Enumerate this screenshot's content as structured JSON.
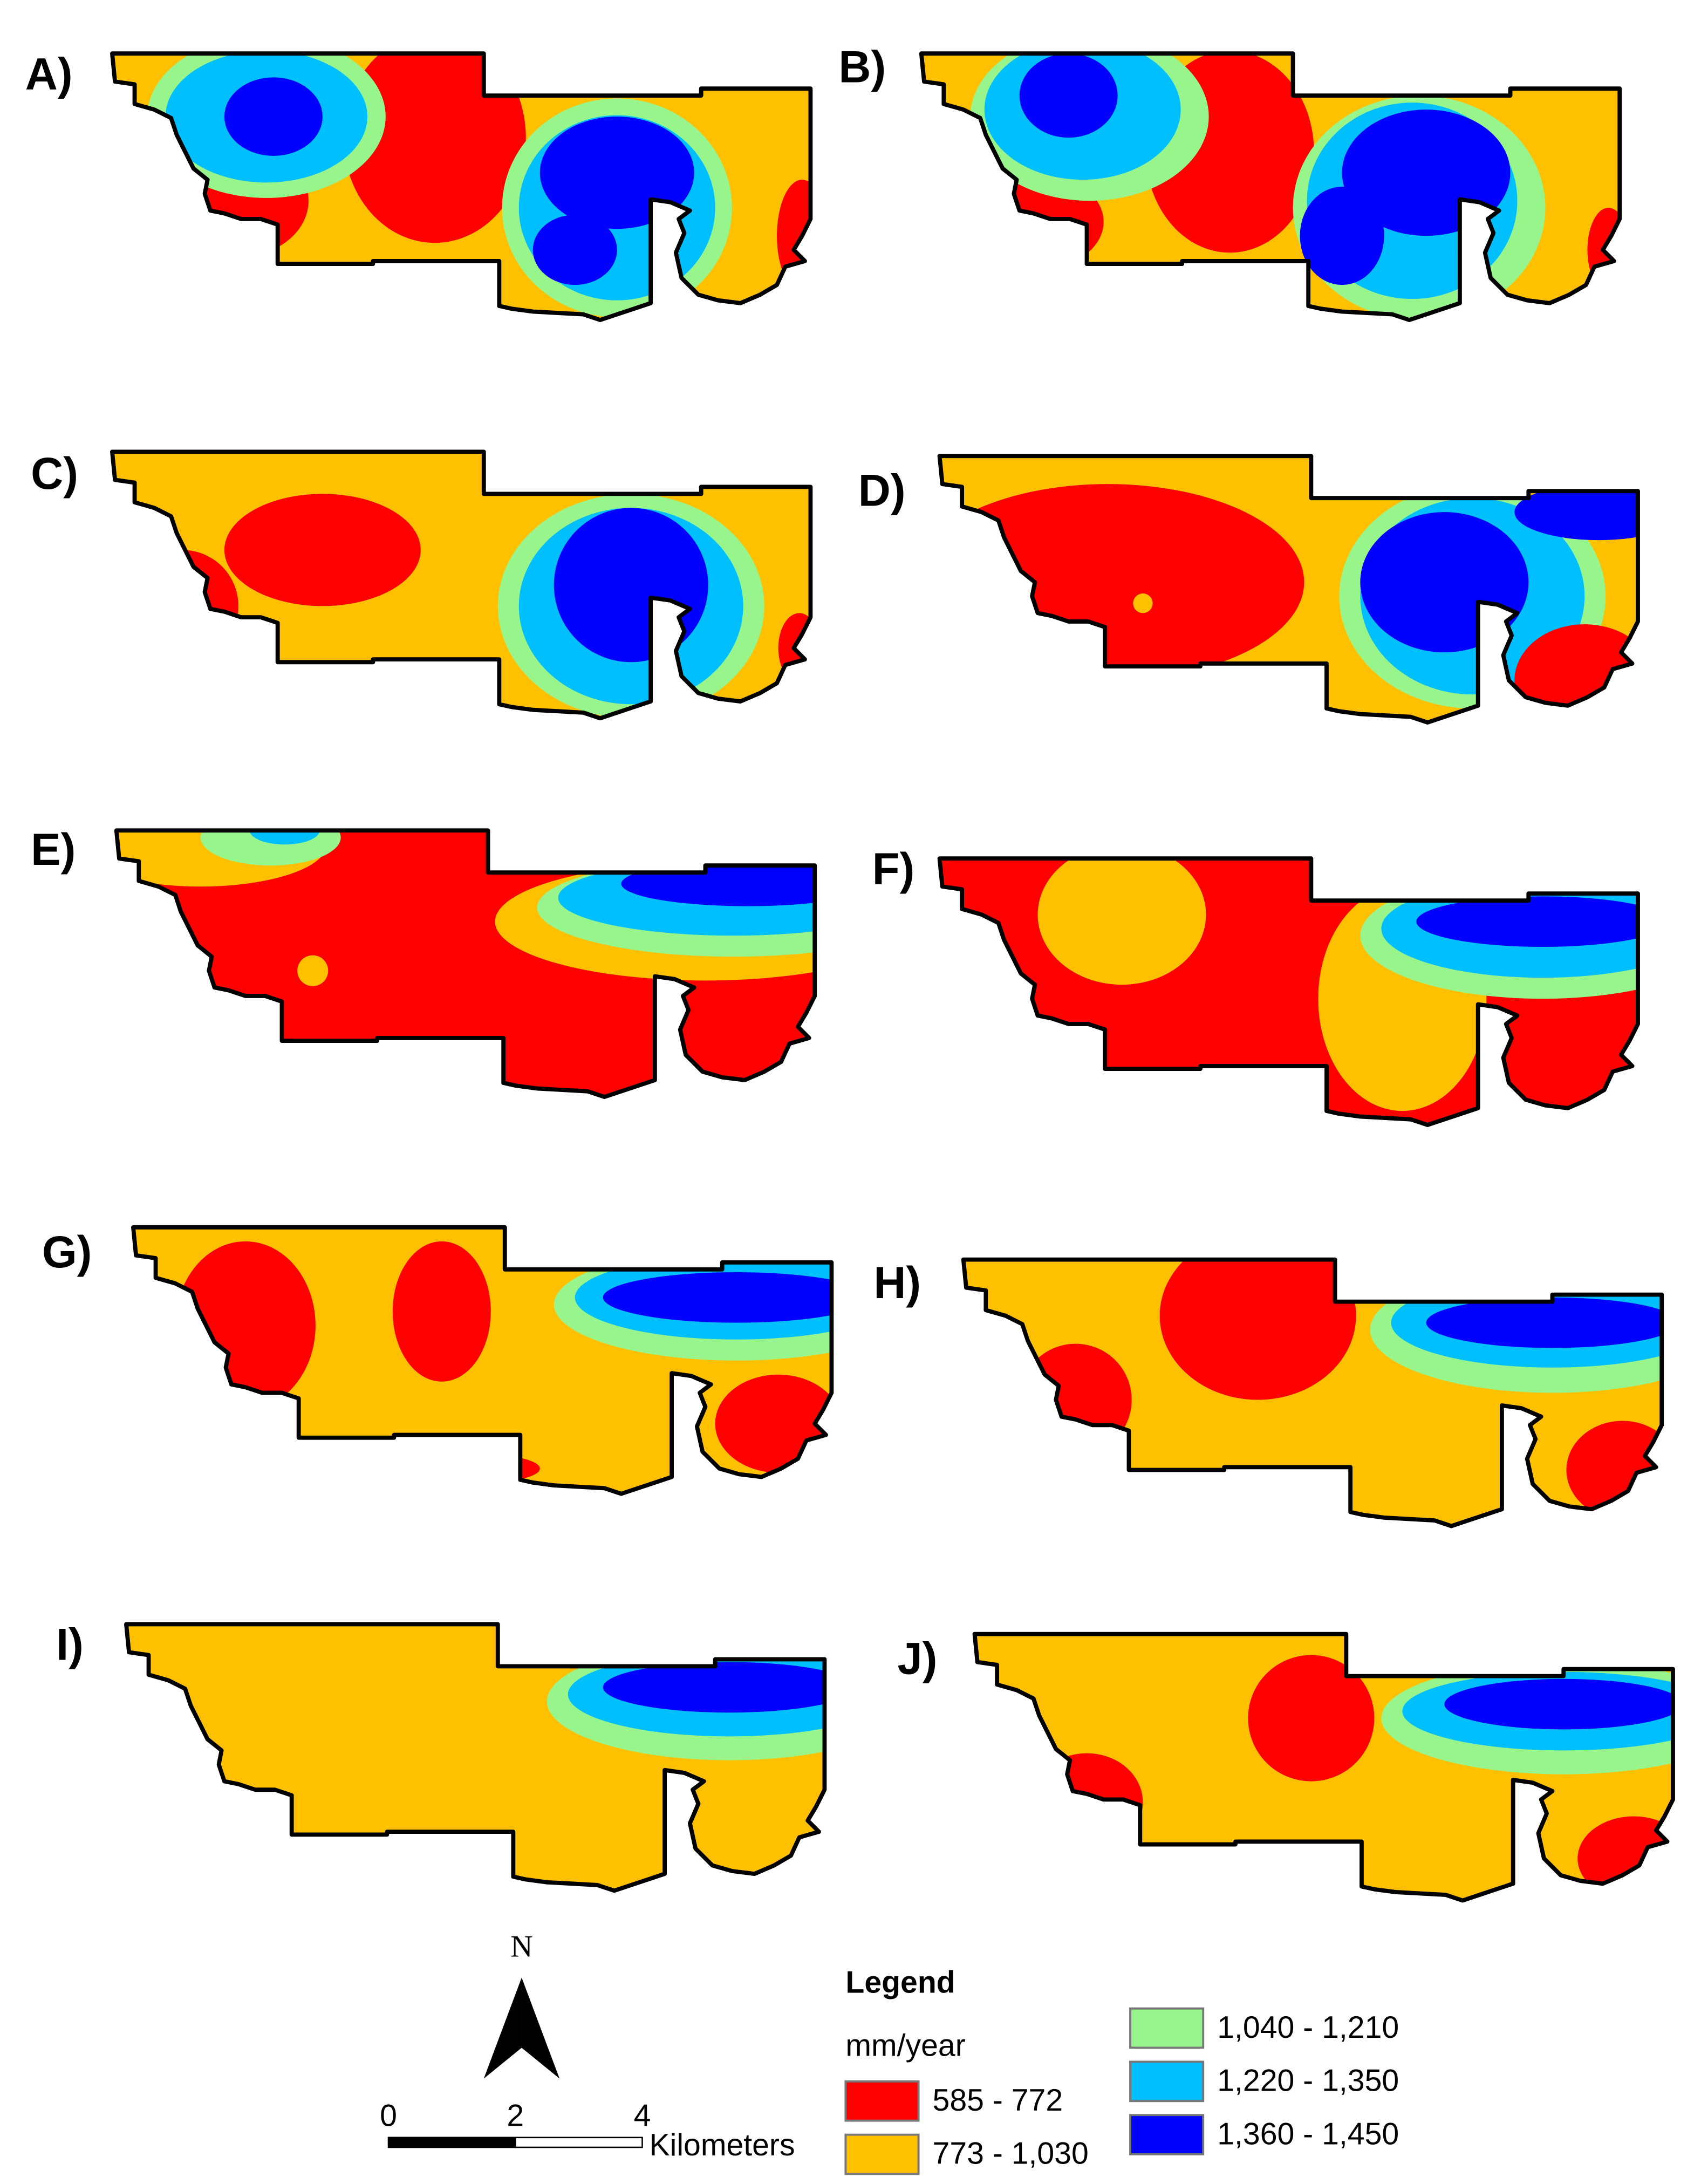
{
  "panels": [
    {
      "label": "A)"
    },
    {
      "label": "B)"
    },
    {
      "label": "C)"
    },
    {
      "label": "D)"
    },
    {
      "label": "E)"
    },
    {
      "label": "F)"
    },
    {
      "label": "G)"
    },
    {
      "label": "H)"
    },
    {
      "label": "I)"
    },
    {
      "label": "J)"
    }
  ],
  "legend": {
    "title": "Legend",
    "unit": "mm/year",
    "items": [
      {
        "label": "585 - 772",
        "color": "#ff0000"
      },
      {
        "label": "773 - 1,030",
        "color": "#ffc000"
      },
      {
        "label": "1,040 - 1,210",
        "color": "#98f58c"
      },
      {
        "label": "1,220 - 1,350",
        "color": "#00bfff"
      },
      {
        "label": "1,360 - 1,450",
        "color": "#0000ff"
      }
    ]
  },
  "north_arrow": {
    "label": "N"
  },
  "scale_bar": {
    "ticks": [
      0,
      2,
      4
    ],
    "unit": "Kilometers"
  }
}
